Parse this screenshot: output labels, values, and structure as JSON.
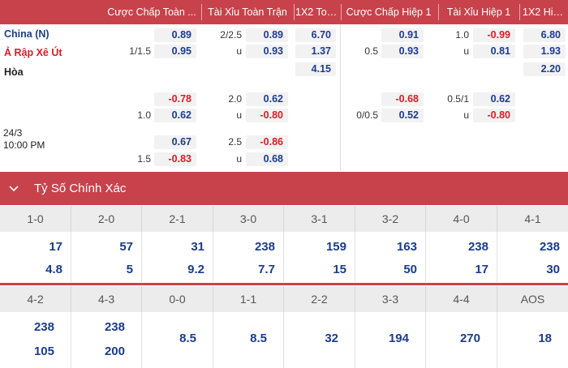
{
  "header": {
    "col_hdp_ft": "Cược Chấp Toàn ...",
    "col_ou_ft": "Tài Xỉu Toàn Trận",
    "col_1x2_ft": "1X2 Toà...",
    "col_hdp_h1": "Cược Chấp Hiệp 1",
    "col_ou_h1": "Tài Xỉu Hiệp 1",
    "col_1x2_h1": "1X2 Hiệp 1"
  },
  "match": {
    "home": "China (N)",
    "away": "Ả Rập Xê Út",
    "draw": "Hòa",
    "date": "24/3",
    "time": "10:00 PM"
  },
  "rows": {
    "r1": {
      "hdp_ft_home": "0.89",
      "hdp_ft_line": "1/1.5",
      "hdp_ft_away": "0.95",
      "ou_ft_line": "2/2.5",
      "ou_ft_over": "0.89",
      "ou_ft_u": "u",
      "ou_ft_under": "0.93",
      "x12_ft_home": "6.70",
      "x12_ft_away": "1.37",
      "x12_ft_draw": "4.15",
      "hdp_h1_home": "0.91",
      "hdp_h1_line": "0.5",
      "hdp_h1_away": "0.93",
      "ou_h1_line": "1.0",
      "ou_h1_over": "-0.99",
      "ou_h1_u": "u",
      "ou_h1_under": "0.81",
      "x12_h1_home": "6.80",
      "x12_h1_away": "1.93",
      "x12_h1_draw": "2.20"
    },
    "r2": {
      "hdp_ft_home": "-0.78",
      "hdp_ft_line": "1.0",
      "hdp_ft_away": "0.62",
      "ou_ft_line": "2.0",
      "ou_ft_over": "0.62",
      "ou_ft_u": "u",
      "ou_ft_under": "-0.80",
      "hdp_h1_home": "-0.68",
      "hdp_h1_line": "0/0.5",
      "hdp_h1_away": "0.52",
      "ou_h1_line": "0.5/1",
      "ou_h1_over": "0.62",
      "ou_h1_u": "u",
      "ou_h1_under": "-0.80"
    },
    "r3": {
      "hdp_ft_home": "0.67",
      "hdp_ft_line": "1.5",
      "hdp_ft_away": "-0.83",
      "ou_ft_line": "2.5",
      "ou_ft_over": "-0.86",
      "ou_ft_u": "u",
      "ou_ft_under": "0.68"
    }
  },
  "section": {
    "title": "Tỷ Số Chính Xác"
  },
  "scores_top": [
    {
      "label": "1-0",
      "a": "17",
      "b": "4.8"
    },
    {
      "label": "2-0",
      "a": "57",
      "b": "5"
    },
    {
      "label": "2-1",
      "a": "31",
      "b": "9.2"
    },
    {
      "label": "3-0",
      "a": "238",
      "b": "7.7"
    },
    {
      "label": "3-1",
      "a": "159",
      "b": "15"
    },
    {
      "label": "3-2",
      "a": "163",
      "b": "50"
    },
    {
      "label": "4-0",
      "a": "238",
      "b": "17"
    },
    {
      "label": "4-1",
      "a": "238",
      "b": "30"
    }
  ],
  "scores_bottom": [
    {
      "label": "4-2",
      "a": "238",
      "b": "105"
    },
    {
      "label": "4-3",
      "a": "238",
      "b": "200"
    },
    {
      "label": "0-0",
      "single": "8.5"
    },
    {
      "label": "1-1",
      "single": "8.5"
    },
    {
      "label": "2-2",
      "single": "32"
    },
    {
      "label": "3-3",
      "single": "194"
    },
    {
      "label": "4-4",
      "single": "270"
    },
    {
      "label": "AOS",
      "single": "18"
    }
  ],
  "colors": {
    "brand": "#c8424b",
    "odds_blue": "#1b3c8c",
    "odds_red": "#d81c27"
  },
  "icons": {
    "collapse": "chevron-down-icon"
  }
}
